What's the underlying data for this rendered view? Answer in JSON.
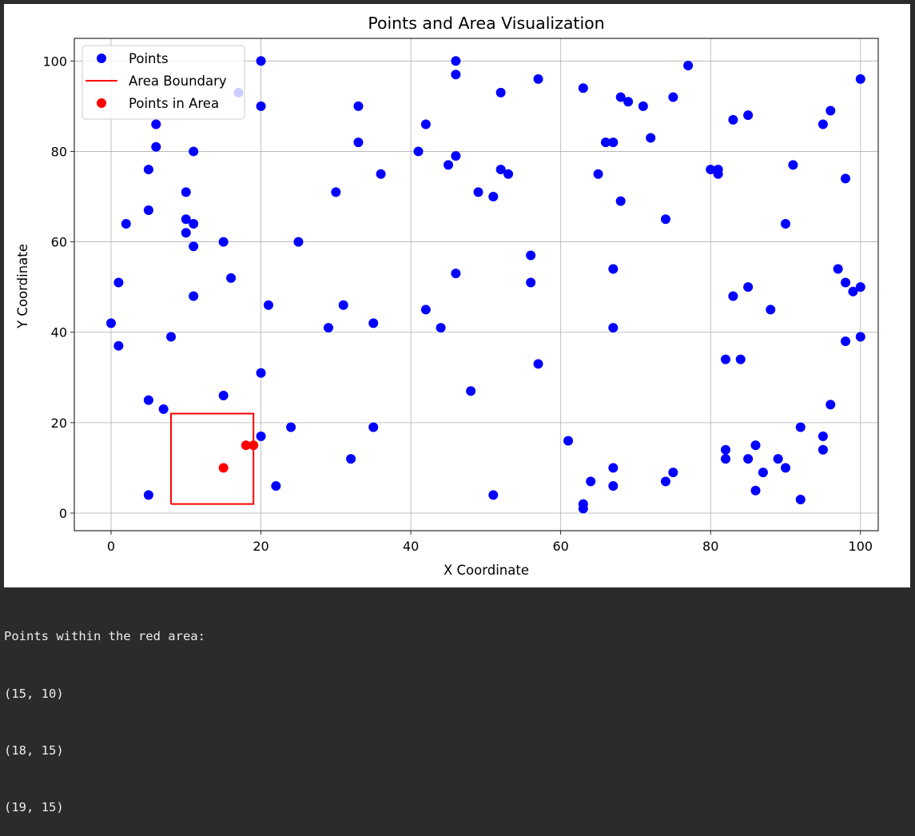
{
  "chart_data": {
    "type": "scatter",
    "title": "Points and Area Visualization",
    "xlabel": "X Coordinate",
    "ylabel": "Y Coordinate",
    "xlim": [
      -5,
      102
    ],
    "ylim": [
      -4,
      105
    ],
    "xticks": [
      0,
      20,
      40,
      60,
      80,
      100
    ],
    "yticks": [
      0,
      20,
      40,
      60,
      80,
      100
    ],
    "grid": true,
    "legend_position": "top-left",
    "colors": {
      "points": "#0000ff",
      "boundary": "#ff0000",
      "in_area": "#ff0000"
    },
    "series": [
      {
        "name": "Points",
        "kind": "scatter",
        "points": [
          [
            0,
            42
          ],
          [
            1,
            51
          ],
          [
            1,
            37
          ],
          [
            2,
            64
          ],
          [
            5,
            76
          ],
          [
            5,
            67
          ],
          [
            5,
            25
          ],
          [
            5,
            4
          ],
          [
            6,
            86
          ],
          [
            6,
            81
          ],
          [
            7,
            23
          ],
          [
            8,
            39
          ],
          [
            10,
            71
          ],
          [
            10,
            65
          ],
          [
            10,
            62
          ],
          [
            11,
            80
          ],
          [
            11,
            64
          ],
          [
            11,
            59
          ],
          [
            11,
            48
          ],
          [
            15,
            60
          ],
          [
            15,
            26
          ],
          [
            16,
            52
          ],
          [
            17,
            93
          ],
          [
            20,
            100
          ],
          [
            20,
            90
          ],
          [
            20,
            31
          ],
          [
            20,
            17
          ],
          [
            21,
            46
          ],
          [
            22,
            6
          ],
          [
            24,
            19
          ],
          [
            25,
            60
          ],
          [
            29,
            41
          ],
          [
            30,
            71
          ],
          [
            31,
            46
          ],
          [
            32,
            12
          ],
          [
            33,
            90
          ],
          [
            33,
            82
          ],
          [
            35,
            42
          ],
          [
            35,
            19
          ],
          [
            36,
            75
          ],
          [
            41,
            80
          ],
          [
            42,
            86
          ],
          [
            42,
            45
          ],
          [
            44,
            41
          ],
          [
            45,
            77
          ],
          [
            46,
            100
          ],
          [
            46,
            97
          ],
          [
            46,
            79
          ],
          [
            46,
            53
          ],
          [
            48,
            27
          ],
          [
            49,
            71
          ],
          [
            51,
            70
          ],
          [
            51,
            4
          ],
          [
            52,
            93
          ],
          [
            52,
            76
          ],
          [
            53,
            75
          ],
          [
            56,
            57
          ],
          [
            56,
            51
          ],
          [
            57,
            96
          ],
          [
            57,
            33
          ],
          [
            61,
            16
          ],
          [
            63,
            94
          ],
          [
            63,
            2
          ],
          [
            63,
            1
          ],
          [
            64,
            7
          ],
          [
            65,
            75
          ],
          [
            66,
            82
          ],
          [
            67,
            82
          ],
          [
            67,
            54
          ],
          [
            67,
            41
          ],
          [
            67,
            10
          ],
          [
            67,
            6
          ],
          [
            68,
            92
          ],
          [
            68,
            69
          ],
          [
            69,
            91
          ],
          [
            71,
            90
          ],
          [
            72,
            83
          ],
          [
            74,
            65
          ],
          [
            74,
            7
          ],
          [
            75,
            92
          ],
          [
            75,
            9
          ],
          [
            77,
            99
          ],
          [
            80,
            76
          ],
          [
            81,
            76
          ],
          [
            81,
            75
          ],
          [
            82,
            34
          ],
          [
            82,
            14
          ],
          [
            82,
            12
          ],
          [
            83,
            87
          ],
          [
            83,
            48
          ],
          [
            84,
            34
          ],
          [
            85,
            88
          ],
          [
            85,
            50
          ],
          [
            85,
            12
          ],
          [
            86,
            15
          ],
          [
            86,
            5
          ],
          [
            87,
            9
          ],
          [
            88,
            45
          ],
          [
            89,
            12
          ],
          [
            90,
            64
          ],
          [
            90,
            10
          ],
          [
            91,
            77
          ],
          [
            92,
            19
          ],
          [
            92,
            3
          ],
          [
            95,
            86
          ],
          [
            95,
            17
          ],
          [
            95,
            14
          ],
          [
            96,
            89
          ],
          [
            96,
            24
          ],
          [
            97,
            54
          ],
          [
            98,
            74
          ],
          [
            98,
            51
          ],
          [
            98,
            38
          ],
          [
            99,
            49
          ],
          [
            100,
            96
          ],
          [
            100,
            50
          ],
          [
            100,
            39
          ]
        ]
      },
      {
        "name": "Area Boundary",
        "kind": "line",
        "points": [
          [
            8,
            2
          ],
          [
            19,
            2
          ],
          [
            19,
            22
          ],
          [
            8,
            22
          ],
          [
            8,
            2
          ]
        ]
      },
      {
        "name": "Points in Area",
        "kind": "scatter",
        "points": [
          [
            15,
            10
          ],
          [
            18,
            15
          ],
          [
            19,
            15
          ]
        ]
      }
    ]
  },
  "console": {
    "lines": [
      "Points within the red area:",
      "(15, 10)",
      "(18, 15)",
      "(19, 15)"
    ]
  }
}
